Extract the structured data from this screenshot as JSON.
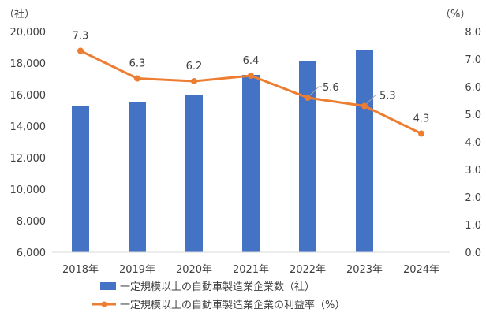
{
  "chart_data": {
    "type": "bar+line",
    "categories": [
      "2018年",
      "2019年",
      "2020年",
      "2021年",
      "2022年",
      "2023年",
      "2024年"
    ],
    "left_unit": "（社）",
    "right_unit": "（%）",
    "left_axis": {
      "min": 6000,
      "max": 20000,
      "step": 2000,
      "ticks": [
        "6,000",
        "8,000",
        "10,000",
        "12,000",
        "14,000",
        "16,000",
        "18,000",
        "20,000"
      ]
    },
    "right_axis": {
      "min": 0,
      "max": 8,
      "step": 1,
      "ticks": [
        "0.0",
        "1.0",
        "2.0",
        "3.0",
        "4.0",
        "5.0",
        "6.0",
        "7.0",
        "8.0"
      ]
    },
    "series": [
      {
        "name": "一定規模以上の自動車製造業企業数（社）",
        "type": "bar",
        "axis": "left",
        "color": "#4472c4",
        "values": [
          15250,
          15500,
          16000,
          17250,
          18100,
          18850,
          null
        ]
      },
      {
        "name": "一定規模以上の自動車製造業企業の利益率（%）",
        "type": "line",
        "axis": "right",
        "color": "#ed7d31",
        "values": [
          7.3,
          6.3,
          6.2,
          6.4,
          5.6,
          5.3,
          4.3
        ],
        "labels": [
          "7.3",
          "6.3",
          "6.2",
          "6.4",
          "5.6",
          "5.3",
          "4.3"
        ]
      }
    ],
    "grid": false,
    "legend_position": "bottom"
  }
}
